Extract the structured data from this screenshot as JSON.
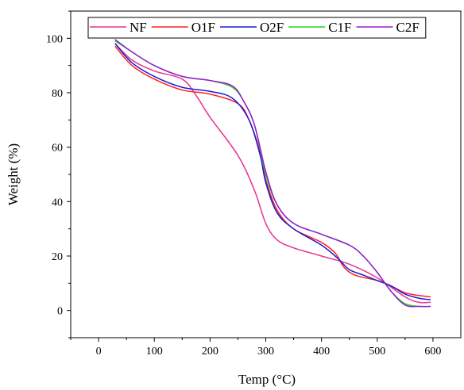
{
  "chart_data": {
    "type": "line",
    "xlabel": "Temp (°C)",
    "ylabel": "Weight (%)",
    "xlim": [
      -50,
      650
    ],
    "ylim": [
      -10,
      110
    ],
    "xticks": [
      0,
      100,
      200,
      300,
      400,
      500,
      600
    ],
    "yticks": [
      0,
      20,
      40,
      60,
      80,
      100
    ],
    "grid": false,
    "legend_position": "top",
    "series": [
      {
        "name": "NF",
        "color": "#e8318e",
        "x": [
          30,
          60,
          100,
          150,
          175,
          200,
          250,
          280,
          300,
          320,
          350,
          400,
          450,
          500,
          550,
          575,
          595
        ],
        "y": [
          98,
          92,
          88,
          85,
          79,
          71,
          57,
          44,
          32,
          26,
          23,
          20,
          17,
          12,
          5,
          3,
          3
        ]
      },
      {
        "name": "O1F",
        "color": "#ff1f1f",
        "x": [
          30,
          60,
          100,
          150,
          200,
          250,
          270,
          290,
          300,
          320,
          350,
          400,
          425,
          440,
          460,
          500,
          525,
          550,
          575,
          595
        ],
        "y": [
          97,
          90,
          85,
          81,
          79.5,
          76,
          70,
          58,
          48,
          37,
          30,
          25,
          21,
          16,
          13,
          11,
          9,
          6.5,
          5.5,
          5
        ]
      },
      {
        "name": "O2F",
        "color": "#1a1ad6",
        "x": [
          30,
          60,
          100,
          150,
          200,
          240,
          270,
          290,
          300,
          320,
          350,
          400,
          430,
          450,
          475,
          500,
          525,
          550,
          575,
          595
        ],
        "y": [
          98,
          91,
          86,
          82,
          80.5,
          78,
          70,
          57,
          47,
          36,
          30,
          24,
          19,
          15,
          13,
          11,
          9,
          6,
          4.5,
          4
        ]
      },
      {
        "name": "C1F",
        "color": "#22d61f",
        "x": [
          30,
          60,
          100,
          150,
          200,
          240,
          260,
          280,
          300,
          320,
          350,
          400,
          450,
          475,
          500,
          525,
          550,
          575,
          595
        ],
        "y": [
          99,
          95,
          90,
          86,
          84.5,
          82,
          77,
          68,
          50,
          39,
          32,
          28,
          24,
          20,
          14,
          7,
          2.5,
          1.5,
          1.5
        ]
      },
      {
        "name": "C2F",
        "color": "#9a1ad6",
        "x": [
          30,
          60,
          100,
          150,
          200,
          240,
          260,
          280,
          300,
          320,
          350,
          400,
          450,
          475,
          500,
          525,
          550,
          575,
          595
        ],
        "y": [
          99.5,
          95,
          90,
          86,
          84.5,
          82.5,
          77,
          68,
          51,
          39,
          32,
          28,
          24,
          20,
          14,
          7,
          2,
          1.5,
          1.5
        ]
      }
    ]
  }
}
